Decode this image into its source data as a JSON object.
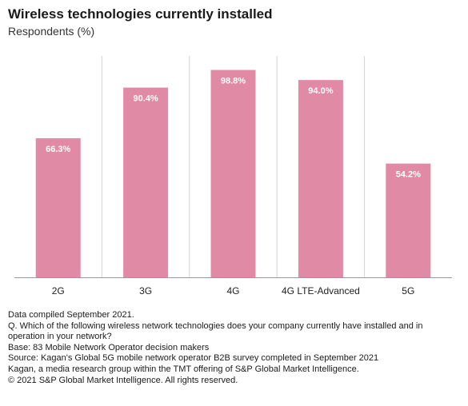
{
  "header": {
    "title": "Wireless technologies currently installed",
    "subtitle": "Respondents (%)"
  },
  "colors": {
    "bar": "#e08aa5",
    "grid": "#d4d4d4",
    "axis": "#999999"
  },
  "chart_data": {
    "type": "bar",
    "title": "Wireless technologies currently installed",
    "subtitle": "Respondents (%)",
    "categories": [
      "2G",
      "3G",
      "4G",
      "4G LTE-Advanced",
      "5G"
    ],
    "values": [
      66.3,
      90.4,
      98.8,
      94.0,
      54.2
    ],
    "data_labels": [
      "66.3%",
      "90.4%",
      "98.8%",
      "94.0%",
      "54.2%"
    ],
    "unit": "%",
    "ylim": [
      0,
      100
    ],
    "grid": "vertical-separators",
    "legend": "none"
  },
  "notes": {
    "lines": [
      "Data compiled September 2021.",
      "Q. Which of the following wireless network technologies does your company currently have installed and in operation in your network?",
      "Base: 83 Mobile Network Operator decision makers",
      "Source: Kagan's Global 5G mobile network operator B2B survey completed in September 2021",
      "Kagan, a media research group within the TMT offering of S&P Global Market Intelligence.",
      "© 2021 S&P Global Market Intelligence. All rights reserved."
    ]
  }
}
